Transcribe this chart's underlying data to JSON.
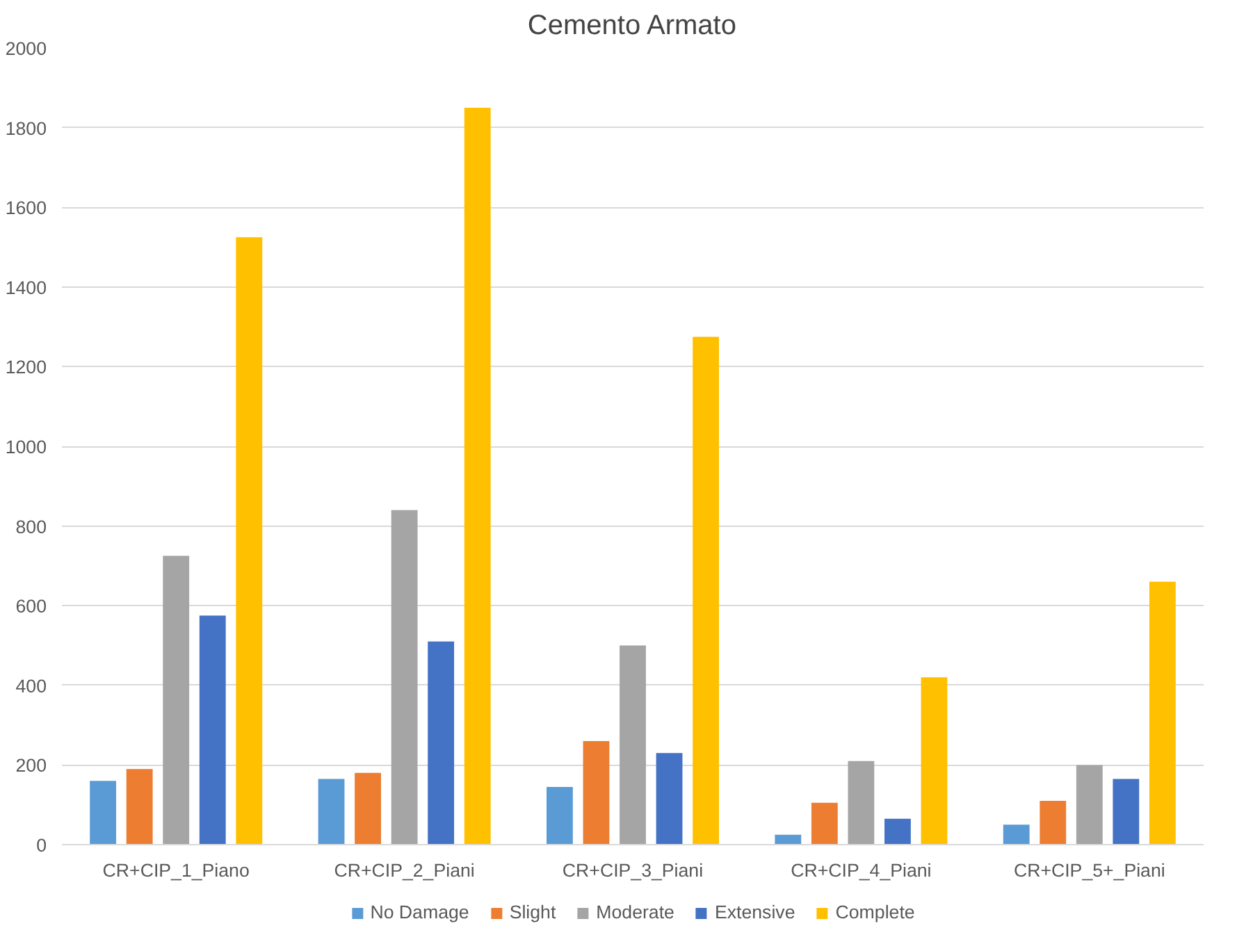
{
  "chart_data": {
    "type": "bar",
    "title": "Cemento Armato",
    "categories": [
      "CR+CIP_1_Piano",
      "CR+CIP_2_Piani",
      "CR+CIP_3_Piani",
      "CR+CIP_4_Piani",
      "CR+CIP_5+_Piani"
    ],
    "series": [
      {
        "name": "No Damage",
        "color": "#5b9bd5",
        "values": [
          160,
          165,
          145,
          25,
          50
        ]
      },
      {
        "name": "Slight",
        "color": "#ed7d31",
        "values": [
          190,
          180,
          260,
          105,
          110
        ]
      },
      {
        "name": "Moderate",
        "color": "#a5a5a5",
        "values": [
          725,
          840,
          500,
          210,
          200
        ]
      },
      {
        "name": "Extensive",
        "color": "#4472c4",
        "values": [
          575,
          510,
          230,
          65,
          165
        ]
      },
      {
        "name": "Complete",
        "color": "#ffc000",
        "values": [
          1525,
          1850,
          1275,
          420,
          660
        ]
      }
    ],
    "ylim": [
      0,
      2000
    ],
    "yticks": [
      0,
      200,
      400,
      600,
      800,
      1000,
      1200,
      1400,
      1600,
      1800,
      2000
    ],
    "grid": "y",
    "legend": "bottom"
  }
}
